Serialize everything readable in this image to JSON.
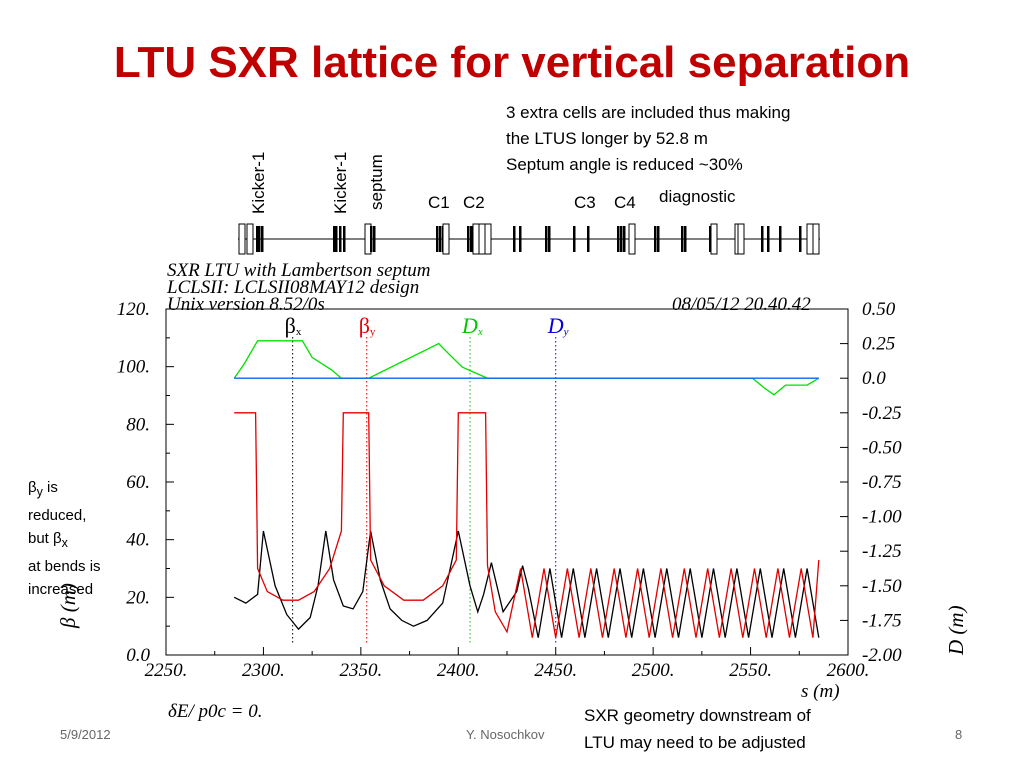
{
  "slide": {
    "title": "LTU SXR lattice for vertical separation",
    "note_lines": [
      "3 extra cells are included thus making",
      "the LTUS longer by 52.8 m",
      "Septum angle is reduced ~30%"
    ],
    "lattice_labels": {
      "kicker_1a": "Kicker-1",
      "kicker_1b": "Kicker-1",
      "septum": "septum",
      "c1": "C1",
      "c2": "C2",
      "c3": "C3",
      "c4": "C4",
      "diagnostic": "diagnostic"
    },
    "side_note": {
      "beta": "β",
      "sub_y": "y",
      "line1": " is",
      "line2": "reduced,",
      "line3": "but ",
      "sub_x": "x",
      "line4": "at bends is",
      "line5": "increased"
    },
    "bottom_note_lines": [
      "SXR geometry downstream of",
      "LTU may need to be adjusted"
    ],
    "footer": {
      "date": "5/9/2012",
      "author": "Y. Nosochkov",
      "page": "8"
    }
  },
  "mad_header": {
    "line1": "SXR LTU with Lambertson septum",
    "line2": "LCLSII: LCLSII08MAY12 design",
    "line3": "Unix version 8.52/0s",
    "datetime": "08/05/12  20.40.42",
    "delta_text": "δE/ p0c   =   0."
  },
  "chart_data": {
    "type": "line",
    "xlabel": "s (m)",
    "ylabel_left": "β (m)",
    "ylabel_right": "D (m)",
    "xlim": [
      2250,
      2600
    ],
    "ylim_left": [
      0,
      120
    ],
    "ylim_right": [
      -2.0,
      0.5
    ],
    "x_ticks": [
      "2250.",
      "2300.",
      "2350.",
      "2400.",
      "2450.",
      "2500.",
      "2550.",
      "2600."
    ],
    "y_ticks_left": [
      "0.0",
      "20.",
      "40.",
      "60.",
      "80.",
      "100.",
      "120."
    ],
    "y_ticks_right": [
      "-2.00",
      "-1.75",
      "-1.50",
      "-1.25",
      "-1.00",
      "-0.75",
      "-0.50",
      "-0.25",
      "0.0",
      "0.25",
      "0.50"
    ],
    "legend": [
      {
        "label": "β",
        "sub": "x",
        "color": "#000000",
        "s": 2315
      },
      {
        "label": "β",
        "sub": "y",
        "color": "#e00000",
        "s": 2353
      },
      {
        "label": "D",
        "sub": "x",
        "color": "#00c800",
        "s": 2406
      },
      {
        "label": "D",
        "sub": "y",
        "color": "#0000e0",
        "s": 2450
      }
    ],
    "series": [
      {
        "name": "βx",
        "axis": "left",
        "color": "#000000",
        "x": [
          2285,
          2291,
          2297,
          2300,
          2306,
          2312,
          2318,
          2324,
          2328,
          2332,
          2336,
          2341,
          2346,
          2351,
          2355,
          2360,
          2365,
          2371,
          2377,
          2384,
          2392,
          2400,
          2406,
          2410,
          2413,
          2417,
          2423,
          2430,
          2433,
          2436,
          2441,
          2447,
          2453,
          2459,
          2465,
          2471,
          2477,
          2483,
          2489,
          2495,
          2501,
          2507,
          2513,
          2519,
          2525,
          2531,
          2537,
          2543,
          2549,
          2555,
          2561,
          2567,
          2573,
          2579,
          2585
        ],
        "y": [
          20,
          18,
          21,
          43,
          24,
          14,
          9,
          13,
          24,
          43,
          26,
          17,
          16,
          22,
          43,
          26,
          16,
          12,
          10,
          12,
          18,
          43,
          24,
          15,
          21,
          32,
          15,
          22,
          31,
          23,
          6,
          30,
          6,
          30,
          6,
          30,
          6,
          30,
          6,
          30,
          6,
          30,
          6,
          30,
          6,
          30,
          6,
          30,
          6,
          30,
          6,
          30,
          6,
          30,
          6
        ]
      },
      {
        "name": "βy",
        "axis": "left",
        "color": "#e00000",
        "x": [
          2285,
          2296,
          2297,
          2302,
          2310,
          2318,
          2326,
          2334,
          2340,
          2341,
          2354,
          2355,
          2362,
          2372,
          2382,
          2392,
          2399,
          2400,
          2414,
          2415,
          2419,
          2425,
          2432,
          2438,
          2444,
          2450,
          2456,
          2462,
          2468,
          2474,
          2480,
          2486,
          2492,
          2498,
          2504,
          2510,
          2516,
          2522,
          2528,
          2534,
          2540,
          2546,
          2552,
          2558,
          2564,
          2570,
          2576,
          2582,
          2585
        ],
        "y": [
          84,
          84,
          30,
          22,
          19,
          19,
          22,
          30,
          43,
          84,
          84,
          33,
          24,
          19,
          19,
          24,
          33,
          84,
          84,
          31,
          15,
          8,
          30,
          6,
          30,
          6,
          30,
          6,
          30,
          6,
          30,
          6,
          30,
          6,
          30,
          6,
          30,
          6,
          30,
          6,
          30,
          6,
          30,
          6,
          30,
          6,
          30,
          6,
          33
        ]
      },
      {
        "name": "Dx",
        "axis": "right",
        "color": "#00e000",
        "x": [
          2285,
          2290,
          2297,
          2320,
          2325,
          2335,
          2340,
          2354,
          2390,
          2392,
          2402,
          2410,
          2415,
          2551,
          2557,
          2562,
          2568,
          2579,
          2585
        ],
        "y": [
          0.0,
          0.1,
          0.27,
          0.27,
          0.15,
          0.06,
          0.0,
          0.0,
          0.25,
          0.22,
          0.08,
          0.03,
          0.0,
          0.0,
          -0.07,
          -0.12,
          -0.05,
          -0.05,
          0.0
        ]
      },
      {
        "name": "Dy",
        "axis": "right",
        "color": "#1060ff",
        "x": [
          2285,
          2585
        ],
        "y": [
          0.0,
          0.0
        ]
      }
    ]
  }
}
